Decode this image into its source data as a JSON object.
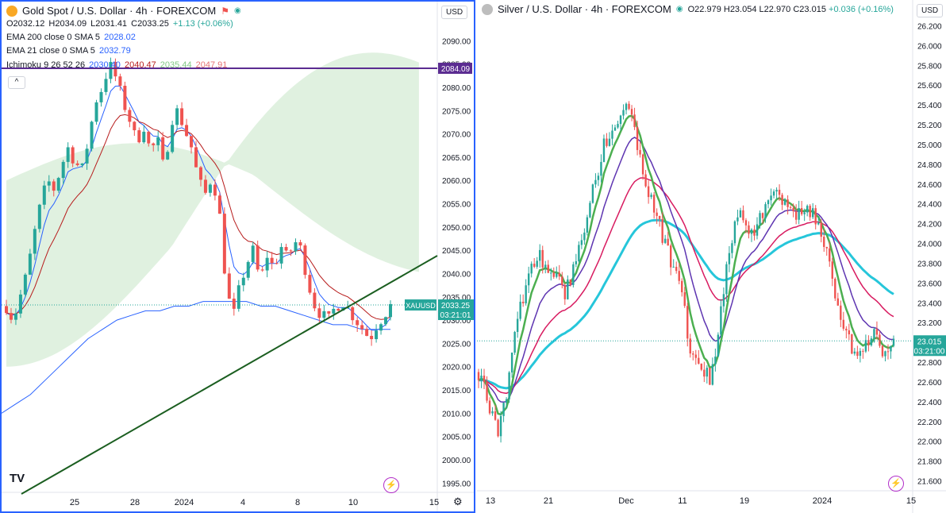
{
  "left": {
    "title": "Gold Spot / U.S. Dollar · 4h · FOREXCOM",
    "currency_button": "USD",
    "ohlc": {
      "o": "O2032.12",
      "h": "H2034.09",
      "l": "L2031.41",
      "c": "C2033.25",
      "chg": "+1.13 (+0.06%)"
    },
    "ema200": {
      "label": "EMA 200 close 0 SMA 5",
      "value": "2028.02"
    },
    "ema21": {
      "label": "EMA 21 close 0 SMA 5",
      "value": "2032.79"
    },
    "ichimoku": {
      "label": "Ichimoku 9 26 52 26",
      "v1": "2030.40",
      "v2": "2040.47",
      "v3": "2035.44",
      "v4": "2047.91"
    },
    "collapse_label": "^",
    "hline_label": "2084.09",
    "ticker_label": "XAUUSD",
    "price_label": "2033.25",
    "countdown": "03:21:01",
    "logo": "TV",
    "colors": {
      "up": "#26a69a",
      "down": "#ef5350",
      "ema200": "#2962ff",
      "ema21": "#2962ff",
      "kijun": "#b71c1c",
      "tenkan": "#2962ff",
      "hline": "#5b2c91",
      "trend": "#1b5e20",
      "cloud_up": "#a5d6a7",
      "cloud_down": "#ef9a9a"
    }
  },
  "right": {
    "title": "Silver / U.S. Dollar · 4h · FOREXCOM",
    "currency_button": "USD",
    "ohlc": {
      "o": "O22.979",
      "h": "H23.054",
      "l": "L22.970",
      "c": "C23.015",
      "chg": "+0.036 (+0.16%)"
    },
    "price_label": "23.015",
    "countdown": "03:21:00",
    "colors": {
      "up": "#26a69a",
      "down": "#ef5350",
      "green": "#4caf50",
      "purple": "#5e35b1",
      "red": "#d81b60",
      "cyan": "#26c6da"
    }
  },
  "chart_data": [
    {
      "type": "candlestick",
      "title": "Gold Spot / U.S. Dollar · 4h · FOREXCOM",
      "y_ticks": [
        "2090.00",
        "2085.00",
        "2080.00",
        "2075.00",
        "2070.00",
        "2065.00",
        "2060.00",
        "2055.00",
        "2050.00",
        "2045.00",
        "2040.00",
        "2035.00",
        "2030.00",
        "2025.00",
        "2020.00",
        "2015.00",
        "2010.00",
        "2005.00",
        "2000.00",
        "1995.00"
      ],
      "x_ticks": [
        "25",
        "28",
        "2024",
        "4",
        "8",
        "10",
        "15"
      ],
      "ylim": [
        1993,
        2095
      ],
      "close_path": [
        2033,
        2030,
        2035,
        2040,
        2048,
        2055,
        2060,
        2058,
        2063,
        2067,
        2064,
        2062,
        2069,
        2077,
        2080,
        2085,
        2082,
        2077,
        2073,
        2068,
        2072,
        2066,
        2069,
        2062,
        2073,
        2075,
        2071,
        2067,
        2060,
        2057,
        2061,
        2054,
        2038,
        2030,
        2037,
        2042,
        2045,
        2038,
        2044,
        2041,
        2046,
        2043,
        2047,
        2045,
        2038,
        2033,
        2031,
        2030,
        2033,
        2034,
        2032,
        2030,
        2028,
        2026,
        2029,
        2031,
        2033
      ],
      "ema200": [
        2010,
        2012,
        2014,
        2017,
        2020,
        2023,
        2026,
        2028,
        2030,
        2031,
        2032,
        2032,
        2033,
        2033,
        2034,
        2034,
        2034,
        2034,
        2033,
        2033,
        2032,
        2031,
        2030,
        2029,
        2029,
        2028,
        2028,
        2028
      ],
      "last_price": 2033.25,
      "hline": 2084.09
    },
    {
      "type": "candlestick",
      "title": "Silver / U.S. Dollar · 4h · FOREXCOM",
      "y_ticks": [
        "26.200",
        "26.000",
        "25.800",
        "25.600",
        "25.400",
        "25.200",
        "25.000",
        "24.800",
        "24.600",
        "24.400",
        "24.200",
        "24.000",
        "23.800",
        "23.600",
        "23.400",
        "23.200",
        "23.000",
        "22.800",
        "22.600",
        "22.400",
        "22.200",
        "22.000",
        "21.800",
        "21.600"
      ],
      "x_ticks": [
        "13",
        "21",
        "Dec",
        "11",
        "19",
        "2024",
        "15"
      ],
      "ylim": [
        21.5,
        26.3
      ],
      "close_path": [
        22.7,
        22.4,
        22.1,
        22.5,
        23.2,
        23.6,
        23.9,
        23.8,
        23.7,
        23.5,
        23.8,
        24.1,
        24.6,
        25.0,
        25.2,
        25.4,
        25.2,
        24.7,
        24.4,
        24.1,
        23.8,
        23.5,
        22.9,
        22.8,
        22.6,
        23.2,
        24.0,
        24.3,
        24.1,
        24.2,
        24.4,
        24.5,
        24.4,
        24.3,
        24.4,
        24.2,
        23.9,
        23.5,
        23.1,
        22.9,
        23.0,
        23.1,
        22.9,
        23.0
      ],
      "last_price": 23.015
    }
  ]
}
